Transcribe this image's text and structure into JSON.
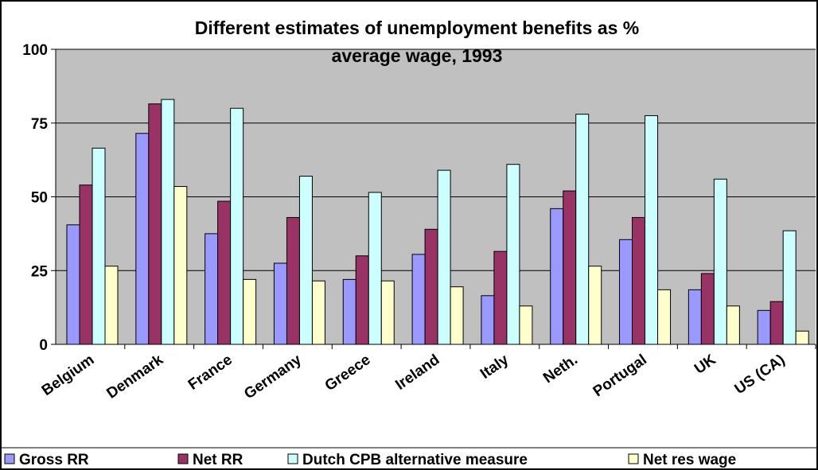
{
  "chart_data": {
    "type": "bar",
    "title_line1": "Different estimates of unemployment benefits as %",
    "title_line2": "average wage, 1993",
    "xlabel": "",
    "ylabel": "",
    "ylim": [
      0,
      100
    ],
    "yticks": [
      0,
      25,
      50,
      75,
      100
    ],
    "grid": true,
    "legend_position": "bottom",
    "plot_background": "#c0c0c0",
    "categories": [
      "Belgium",
      "Denmark",
      "France",
      "Germany",
      "Greece",
      "Ireland",
      "Italy",
      "Neth.",
      "Portugal",
      "UK",
      "US (CA)"
    ],
    "series": [
      {
        "name": "Gross RR",
        "color": "#9999ff",
        "values": [
          40.5,
          71.5,
          37.5,
          27.5,
          22,
          30.5,
          16.5,
          46,
          35.5,
          18.5,
          11.5
        ]
      },
      {
        "name": "Net RR",
        "color": "#993366",
        "values": [
          54,
          81.5,
          48.5,
          43,
          30,
          39,
          31.5,
          52,
          43,
          24,
          14.5
        ]
      },
      {
        "name": "Dutch CPB alternative measure",
        "color": "#ccffff",
        "values": [
          66.5,
          83,
          80,
          57,
          51.5,
          59,
          61,
          78,
          77.5,
          56,
          38.5
        ]
      },
      {
        "name": "Net res wage",
        "color": "#ffffcc",
        "values": [
          26.5,
          53.5,
          22,
          21.5,
          21.5,
          19.5,
          13,
          26.5,
          18.5,
          13,
          4.5
        ]
      }
    ]
  }
}
